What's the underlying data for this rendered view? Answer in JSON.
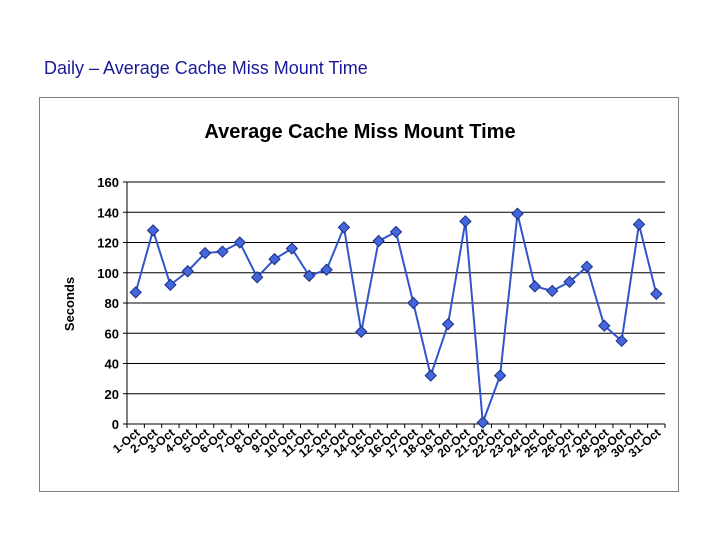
{
  "slide": {
    "title": "Daily – Average Cache Miss Mount Time"
  },
  "colors": {
    "line": "#3355cc",
    "marker_fill": "#4466dd",
    "marker_stroke": "#1a2f80",
    "title": "#1a1a99"
  },
  "chart_data": {
    "type": "line",
    "title": "Average Cache Miss Mount Time",
    "xlabel": "",
    "ylabel": "Seconds",
    "ylim": [
      0,
      160
    ],
    "yticks": [
      0,
      20,
      40,
      60,
      80,
      100,
      120,
      140,
      160
    ],
    "grid": true,
    "legend": "none",
    "categories": [
      "1-Oct",
      "2-Oct",
      "3-Oct",
      "4-Oct",
      "5-Oct",
      "6-Oct",
      "7-Oct",
      "8-Oct",
      "9-Oct",
      "10-Oct",
      "11-Oct",
      "12-Oct",
      "13-Oct",
      "14-Oct",
      "15-Oct",
      "16-Oct",
      "17-Oct",
      "18-Oct",
      "19-Oct",
      "20-Oct",
      "21-Oct",
      "22-Oct",
      "23-Oct",
      "24-Oct",
      "25-Oct",
      "26-Oct",
      "27-Oct",
      "28-Oct",
      "29-Oct",
      "30-Oct",
      "31-Oct"
    ],
    "series": [
      {
        "values": [
          87,
          128,
          92,
          101,
          113,
          114,
          120,
          97,
          109,
          116,
          98,
          102,
          130,
          61,
          121,
          127,
          80,
          32,
          66,
          134,
          1,
          32,
          139,
          91,
          88,
          94,
          104,
          65,
          55,
          132,
          86
        ]
      }
    ]
  }
}
